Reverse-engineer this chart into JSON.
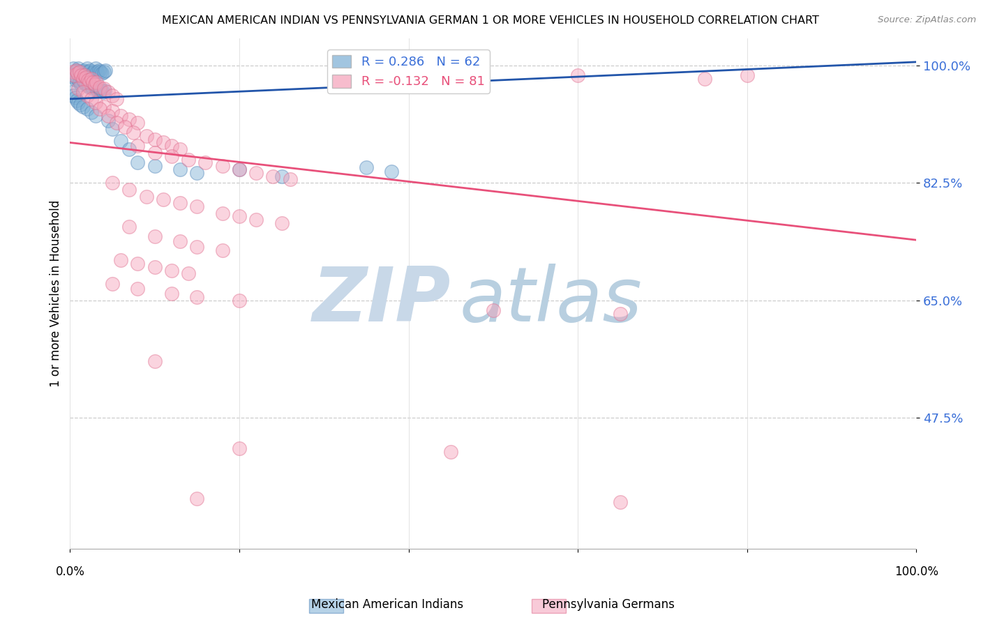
{
  "title": "MEXICAN AMERICAN INDIAN VS PENNSYLVANIA GERMAN 1 OR MORE VEHICLES IN HOUSEHOLD CORRELATION CHART",
  "source": "Source: ZipAtlas.com",
  "ylabel": "1 or more Vehicles in Household",
  "xlim": [
    0.0,
    100.0
  ],
  "ylim": [
    28.0,
    104.0
  ],
  "yticks": [
    100.0,
    82.5,
    65.0,
    47.5
  ],
  "ytick_labels": [
    "100.0%",
    "82.5%",
    "65.0%",
    "47.5%"
  ],
  "watermark_zip": "ZIP",
  "watermark_atlas": "atlas",
  "watermark_color_zip": "#c8d8e8",
  "watermark_color_atlas": "#b8cfe0",
  "background_color": "#ffffff",
  "blue_color": "#7aadd4",
  "blue_edge_color": "#5588bb",
  "pink_color": "#f4a0b8",
  "pink_edge_color": "#e07090",
  "blue_line_color": "#2255aa",
  "pink_line_color": "#e8507a",
  "blue_trend_x": [
    0.0,
    100.0
  ],
  "blue_trend_y": [
    95.0,
    100.5
  ],
  "pink_trend_x": [
    0.0,
    100.0
  ],
  "pink_trend_y": [
    88.5,
    74.0
  ],
  "blue_scatter": [
    [
      0.4,
      99.5
    ],
    [
      0.6,
      99.0
    ],
    [
      0.8,
      99.2
    ],
    [
      1.0,
      99.5
    ],
    [
      1.2,
      99.0
    ],
    [
      1.4,
      98.8
    ],
    [
      1.6,
      99.2
    ],
    [
      1.8,
      99.0
    ],
    [
      2.0,
      99.5
    ],
    [
      2.2,
      99.0
    ],
    [
      2.4,
      99.2
    ],
    [
      2.6,
      98.8
    ],
    [
      2.8,
      99.0
    ],
    [
      3.0,
      99.5
    ],
    [
      3.2,
      99.0
    ],
    [
      3.4,
      99.2
    ],
    [
      3.6,
      99.0
    ],
    [
      3.8,
      98.8
    ],
    [
      4.0,
      99.0
    ],
    [
      4.2,
      99.2
    ],
    [
      0.3,
      98.5
    ],
    [
      0.5,
      98.2
    ],
    [
      0.7,
      97.8
    ],
    [
      0.9,
      98.0
    ],
    [
      1.1,
      97.5
    ],
    [
      1.3,
      97.2
    ],
    [
      1.5,
      97.8
    ],
    [
      1.7,
      97.5
    ],
    [
      1.9,
      97.2
    ],
    [
      2.1,
      97.0
    ],
    [
      2.3,
      96.8
    ],
    [
      2.5,
      97.0
    ],
    [
      2.7,
      96.5
    ],
    [
      2.9,
      96.8
    ],
    [
      3.1,
      96.5
    ],
    [
      3.3,
      96.2
    ],
    [
      3.5,
      96.5
    ],
    [
      3.7,
      96.2
    ],
    [
      3.9,
      96.0
    ],
    [
      4.1,
      96.2
    ],
    [
      0.2,
      96.0
    ],
    [
      0.4,
      95.5
    ],
    [
      0.6,
      95.2
    ],
    [
      0.8,
      94.8
    ],
    [
      1.0,
      94.5
    ],
    [
      1.2,
      94.2
    ],
    [
      1.5,
      93.8
    ],
    [
      2.0,
      93.5
    ],
    [
      2.5,
      93.0
    ],
    [
      3.0,
      92.5
    ],
    [
      4.5,
      91.8
    ],
    [
      5.0,
      90.5
    ],
    [
      6.0,
      88.8
    ],
    [
      7.0,
      87.5
    ],
    [
      8.0,
      85.5
    ],
    [
      10.0,
      85.0
    ],
    [
      13.0,
      84.5
    ],
    [
      15.0,
      84.0
    ],
    [
      20.0,
      84.5
    ],
    [
      25.0,
      83.5
    ],
    [
      35.0,
      84.8
    ],
    [
      38.0,
      84.2
    ]
  ],
  "pink_scatter": [
    [
      0.3,
      99.0
    ],
    [
      0.5,
      98.5
    ],
    [
      0.7,
      99.2
    ],
    [
      0.9,
      98.8
    ],
    [
      1.1,
      99.0
    ],
    [
      1.3,
      98.5
    ],
    [
      1.5,
      98.0
    ],
    [
      1.7,
      98.5
    ],
    [
      1.9,
      98.2
    ],
    [
      2.1,
      97.8
    ],
    [
      2.3,
      97.5
    ],
    [
      2.5,
      98.0
    ],
    [
      2.7,
      97.5
    ],
    [
      2.9,
      97.2
    ],
    [
      3.1,
      97.5
    ],
    [
      3.5,
      96.8
    ],
    [
      4.0,
      96.5
    ],
    [
      4.5,
      96.0
    ],
    [
      5.0,
      95.5
    ],
    [
      5.5,
      95.0
    ],
    [
      1.0,
      96.5
    ],
    [
      1.5,
      96.0
    ],
    [
      2.0,
      95.5
    ],
    [
      2.5,
      95.0
    ],
    [
      3.0,
      94.5
    ],
    [
      4.0,
      93.8
    ],
    [
      5.0,
      93.2
    ],
    [
      6.0,
      92.5
    ],
    [
      7.0,
      92.0
    ],
    [
      8.0,
      91.5
    ],
    [
      3.5,
      93.5
    ],
    [
      4.5,
      92.5
    ],
    [
      5.5,
      91.5
    ],
    [
      6.5,
      90.8
    ],
    [
      7.5,
      90.0
    ],
    [
      9.0,
      89.5
    ],
    [
      10.0,
      89.0
    ],
    [
      11.0,
      88.5
    ],
    [
      12.0,
      88.0
    ],
    [
      13.0,
      87.5
    ],
    [
      8.0,
      88.0
    ],
    [
      10.0,
      87.0
    ],
    [
      12.0,
      86.5
    ],
    [
      14.0,
      86.0
    ],
    [
      16.0,
      85.5
    ],
    [
      18.0,
      85.0
    ],
    [
      20.0,
      84.5
    ],
    [
      22.0,
      84.0
    ],
    [
      24.0,
      83.5
    ],
    [
      26.0,
      83.0
    ],
    [
      5.0,
      82.5
    ],
    [
      7.0,
      81.5
    ],
    [
      9.0,
      80.5
    ],
    [
      11.0,
      80.0
    ],
    [
      13.0,
      79.5
    ],
    [
      15.0,
      79.0
    ],
    [
      18.0,
      78.0
    ],
    [
      20.0,
      77.5
    ],
    [
      22.0,
      77.0
    ],
    [
      25.0,
      76.5
    ],
    [
      7.0,
      76.0
    ],
    [
      10.0,
      74.5
    ],
    [
      13.0,
      73.8
    ],
    [
      15.0,
      73.0
    ],
    [
      18.0,
      72.5
    ],
    [
      6.0,
      71.0
    ],
    [
      8.0,
      70.5
    ],
    [
      10.0,
      70.0
    ],
    [
      12.0,
      69.5
    ],
    [
      14.0,
      69.0
    ],
    [
      5.0,
      67.5
    ],
    [
      8.0,
      66.8
    ],
    [
      12.0,
      66.0
    ],
    [
      15.0,
      65.5
    ],
    [
      20.0,
      65.0
    ],
    [
      60.0,
      98.5
    ],
    [
      75.0,
      98.0
    ],
    [
      80.0,
      98.5
    ],
    [
      50.0,
      63.5
    ],
    [
      65.0,
      63.0
    ],
    [
      10.0,
      56.0
    ],
    [
      20.0,
      43.0
    ],
    [
      45.0,
      42.5
    ],
    [
      15.0,
      35.5
    ],
    [
      65.0,
      35.0
    ]
  ]
}
